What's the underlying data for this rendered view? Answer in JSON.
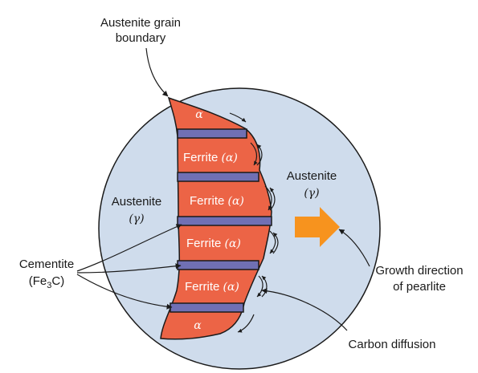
{
  "labels": {
    "grain_boundary_l1": "Austenite grain",
    "grain_boundary_l2": "boundary",
    "austenite_left": "Austenite",
    "gamma_left": "(γ)",
    "austenite_right": "Austenite",
    "gamma_right": "(γ)",
    "cementite_l1": "Cementite",
    "cementite_l2_pre": "(Fe",
    "cementite_l2_sub": "3",
    "cementite_l2_post": "C)",
    "growth_l1": "Growth direction",
    "growth_l2": "of pearlite",
    "carbon_diffusion": "Carbon diffusion"
  },
  "layers": [
    {
      "type": "alpha",
      "text": "α"
    },
    {
      "type": "ferrite",
      "text": "Ferrite",
      "symbol": "(α)"
    },
    {
      "type": "ferrite",
      "text": "Ferrite",
      "symbol": "(α)"
    },
    {
      "type": "ferrite",
      "text": "Ferrite",
      "symbol": "(α)"
    },
    {
      "type": "ferrite",
      "text": "Ferrite",
      "symbol": "(α)"
    },
    {
      "type": "alpha",
      "text": "α"
    }
  ],
  "colors": {
    "austenite": "#cfdcec",
    "ferrite": "#ec6446",
    "cementite": "#7070b4",
    "arrow": "#f7931e",
    "outline": "#1a1a1a"
  }
}
